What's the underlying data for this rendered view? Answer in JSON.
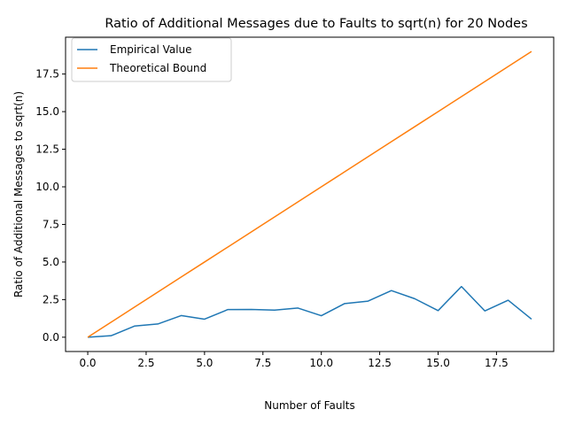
{
  "chart_data": {
    "type": "line",
    "title": "Ratio of Additional Messages due to Faults to sqrt(n) for 20 Nodes",
    "xlabel": "Number of Faults",
    "ylabel": "Ratio of Additional Messages to sqrt(n)",
    "xlim": [
      -0.95,
      19.95
    ],
    "ylim": [
      -0.95,
      19.95
    ],
    "xticks": [
      0,
      2.5,
      5,
      7.5,
      10,
      12.5,
      15,
      17.5
    ],
    "xtick_labels": [
      "0.0",
      "2.5",
      "5.0",
      "7.5",
      "10.0",
      "12.5",
      "15.0",
      "17.5"
    ],
    "yticks": [
      0,
      2.5,
      5,
      7.5,
      10,
      12.5,
      15,
      17.5
    ],
    "ytick_labels": [
      "0.0",
      "2.5",
      "5.0",
      "7.5",
      "10.0",
      "12.5",
      "15.0",
      "17.5"
    ],
    "grid": false,
    "legend_position": "upper-left",
    "x": [
      0,
      1,
      2,
      3,
      4,
      5,
      6,
      7,
      8,
      9,
      10,
      11,
      12,
      13,
      14,
      15,
      16,
      17,
      18,
      19
    ],
    "series": [
      {
        "name": "Empirical Value",
        "color": "#1f77b4",
        "values": [
          0.0,
          0.1,
          0.74,
          0.88,
          1.44,
          1.2,
          1.84,
          1.85,
          1.8,
          1.94,
          1.43,
          2.24,
          2.4,
          3.1,
          2.56,
          1.77,
          3.37,
          1.75,
          2.46,
          1.2
        ]
      },
      {
        "name": "Theoretical Bound",
        "color": "#ff7f0e",
        "values": [
          0,
          1,
          2,
          3,
          4,
          5,
          6,
          7,
          8,
          9,
          10,
          11,
          12,
          13,
          14,
          15,
          16,
          17,
          18,
          19
        ]
      }
    ]
  }
}
